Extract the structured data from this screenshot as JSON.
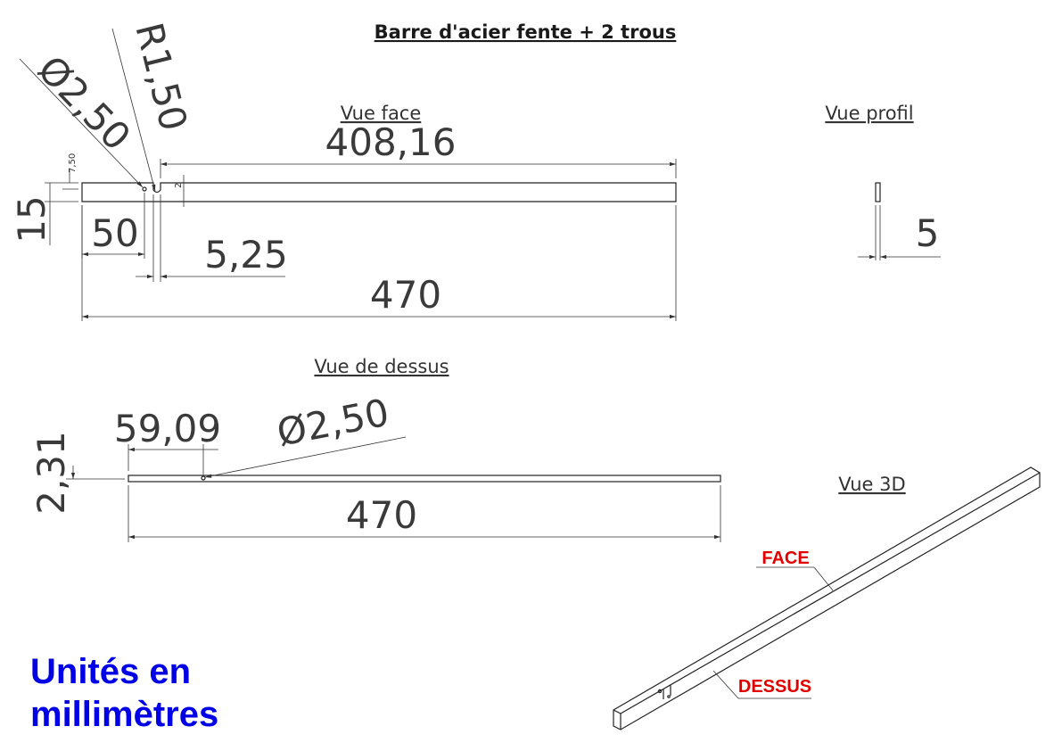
{
  "title": "Barre d'acier fente + 2 trous",
  "views": {
    "face": {
      "label": "Vue face",
      "dims": {
        "slot_to_end": "408,16",
        "diameter": "Ø2,50",
        "radius": "R1,50",
        "height": "15",
        "hole_height": "7,50",
        "slot_depth": "2",
        "hole_offset": "50",
        "slot_width": "5,25",
        "length": "470"
      }
    },
    "profil": {
      "label": "Vue profil",
      "dims": {
        "thickness": "5"
      }
    },
    "dessus": {
      "label": "Vue de dessus",
      "dims": {
        "height": "2,31",
        "hole_offset": "59,09",
        "diameter": "Ø2,50",
        "length": "470"
      }
    },
    "iso": {
      "label": "Vue 3D",
      "callouts": {
        "face": "FACE",
        "dessus": "DESSUS"
      }
    }
  },
  "units_note": {
    "line1": "Unités en",
    "line2": "millimètres"
  },
  "colors": {
    "ink": "#333333",
    "callout": "#e00000",
    "units": "#0000e6"
  }
}
